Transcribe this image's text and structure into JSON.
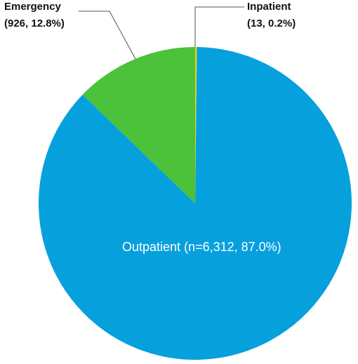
{
  "chart_data": {
    "type": "pie",
    "categories": [
      "Inpatient",
      "Outpatient",
      "Emergency"
    ],
    "values": [
      13,
      6312,
      926
    ],
    "value_labels": [
      "(13, 0.2%)",
      "(n=6,312, 87.0%)",
      "(926, 12.8%)"
    ],
    "colors": [
      "#e6d21c",
      "#06a0dd",
      "#4cc13a"
    ]
  }
}
